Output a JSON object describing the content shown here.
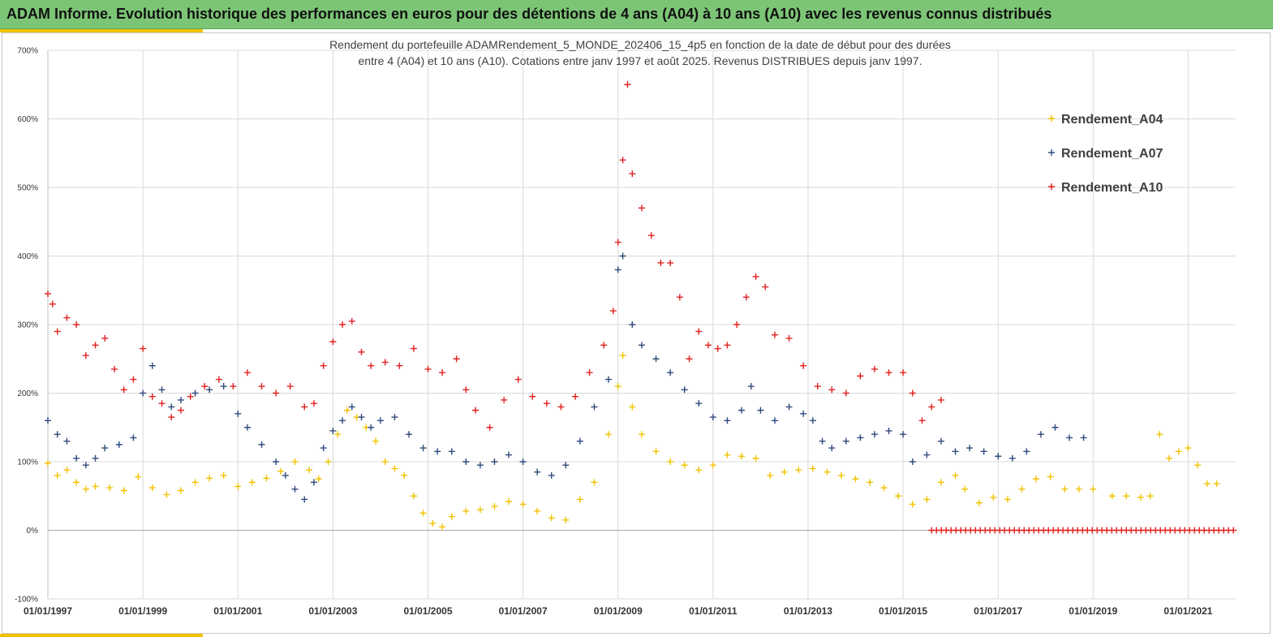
{
  "header": {
    "title": "ADAM Informe. Evolution historique des performances en euros pour des détentions de 4 ans (A04) à 10 ans (A10) avec les revenus connus distribués"
  },
  "chart_data": {
    "type": "scatter",
    "title": "",
    "subtitle_lines": [
      "Rendement du portefeuille ADAMRendement_5_MONDE_202406_15_4p5  en fonction de la date de début pour des durées",
      "entre 4 (A04) et 10 ans (A10). Cotations  entre janv 1997 et août 2025. Revenus DISTRIBUES depuis janv 1997."
    ],
    "xlabel": "",
    "ylabel": "",
    "x_range": [
      1997.0,
      2022.0
    ],
    "ylim": [
      -100,
      700
    ],
    "y_ticks": [
      -100,
      0,
      100,
      200,
      300,
      400,
      500,
      600,
      700
    ],
    "y_tick_labels": [
      "-100%",
      "0%",
      "100%",
      "200%",
      "300%",
      "400%",
      "500%",
      "600%",
      "700%"
    ],
    "x_ticks": [
      1997,
      1999,
      2001,
      2003,
      2005,
      2007,
      2009,
      2011,
      2013,
      2015,
      2017,
      2019,
      2021
    ],
    "x_tick_labels": [
      "01/01/1997",
      "01/01/1999",
      "01/01/2001",
      "01/01/2003",
      "01/01/2005",
      "01/01/2007",
      "01/01/2009",
      "01/01/2011",
      "01/01/2013",
      "01/01/2015",
      "01/01/2017",
      "01/01/2019",
      "01/01/2021"
    ],
    "grid": true,
    "marker": "+",
    "legend_position": "top-right",
    "x_unit": "year",
    "series": [
      {
        "name": "Rendement_A04",
        "color": "#f2c200",
        "points": [
          [
            1997.0,
            98
          ],
          [
            1997.2,
            80
          ],
          [
            1997.4,
            88
          ],
          [
            1997.6,
            70
          ],
          [
            1997.8,
            60
          ],
          [
            1998.0,
            64
          ],
          [
            1998.3,
            62
          ],
          [
            1998.6,
            58
          ],
          [
            1998.9,
            78
          ],
          [
            1999.2,
            62
          ],
          [
            1999.5,
            52
          ],
          [
            1999.8,
            58
          ],
          [
            2000.1,
            70
          ],
          [
            2000.4,
            76
          ],
          [
            2000.7,
            80
          ],
          [
            2001.0,
            64
          ],
          [
            2001.3,
            70
          ],
          [
            2001.6,
            76
          ],
          [
            2001.9,
            86
          ],
          [
            2002.2,
            100
          ],
          [
            2002.5,
            88
          ],
          [
            2002.7,
            75
          ],
          [
            2002.9,
            100
          ],
          [
            2003.1,
            140
          ],
          [
            2003.3,
            175
          ],
          [
            2003.5,
            165
          ],
          [
            2003.7,
            150
          ],
          [
            2003.9,
            130
          ],
          [
            2004.1,
            100
          ],
          [
            2004.3,
            90
          ],
          [
            2004.5,
            80
          ],
          [
            2004.7,
            50
          ],
          [
            2004.9,
            25
          ],
          [
            2005.1,
            10
          ],
          [
            2005.3,
            5
          ],
          [
            2005.5,
            20
          ],
          [
            2005.8,
            28
          ],
          [
            2006.1,
            30
          ],
          [
            2006.4,
            35
          ],
          [
            2006.7,
            42
          ],
          [
            2007.0,
            38
          ],
          [
            2007.3,
            28
          ],
          [
            2007.6,
            18
          ],
          [
            2007.9,
            15
          ],
          [
            2008.2,
            45
          ],
          [
            2008.5,
            70
          ],
          [
            2008.8,
            140
          ],
          [
            2009.0,
            210
          ],
          [
            2009.1,
            255
          ],
          [
            2009.3,
            180
          ],
          [
            2009.5,
            140
          ],
          [
            2009.8,
            115
          ],
          [
            2010.1,
            100
          ],
          [
            2010.4,
            95
          ],
          [
            2010.7,
            88
          ],
          [
            2011.0,
            95
          ],
          [
            2011.3,
            110
          ],
          [
            2011.6,
            108
          ],
          [
            2011.9,
            105
          ],
          [
            2012.2,
            80
          ],
          [
            2012.5,
            85
          ],
          [
            2012.8,
            88
          ],
          [
            2013.1,
            90
          ],
          [
            2013.4,
            85
          ],
          [
            2013.7,
            80
          ],
          [
            2014.0,
            75
          ],
          [
            2014.3,
            70
          ],
          [
            2014.6,
            62
          ],
          [
            2014.9,
            50
          ],
          [
            2015.2,
            38
          ],
          [
            2015.5,
            45
          ],
          [
            2015.8,
            70
          ],
          [
            2016.1,
            80
          ],
          [
            2016.3,
            60
          ],
          [
            2016.6,
            40
          ],
          [
            2016.9,
            48
          ],
          [
            2017.2,
            45
          ],
          [
            2017.5,
            60
          ],
          [
            2017.8,
            75
          ],
          [
            2018.1,
            78
          ],
          [
            2018.4,
            60
          ],
          [
            2018.7,
            60
          ],
          [
            2019.0,
            60
          ],
          [
            2019.4,
            50
          ],
          [
            2019.7,
            50
          ],
          [
            2020.0,
            48
          ],
          [
            2020.2,
            50
          ],
          [
            2020.4,
            140
          ],
          [
            2020.6,
            105
          ],
          [
            2020.8,
            115
          ],
          [
            2021.0,
            120
          ],
          [
            2021.2,
            95
          ],
          [
            2021.4,
            68
          ],
          [
            2021.6,
            68
          ]
        ]
      },
      {
        "name": "Rendement_A07",
        "color": "#2e4a7d",
        "points": [
          [
            1997.0,
            160
          ],
          [
            1997.2,
            140
          ],
          [
            1997.4,
            130
          ],
          [
            1997.6,
            105
          ],
          [
            1997.8,
            95
          ],
          [
            1998.0,
            105
          ],
          [
            1998.2,
            120
          ],
          [
            1998.5,
            125
          ],
          [
            1998.8,
            135
          ],
          [
            1999.0,
            200
          ],
          [
            1999.2,
            240
          ],
          [
            1999.4,
            205
          ],
          [
            1999.6,
            180
          ],
          [
            1999.8,
            190
          ],
          [
            2000.1,
            200
          ],
          [
            2000.4,
            205
          ],
          [
            2000.7,
            210
          ],
          [
            2001.0,
            170
          ],
          [
            2001.2,
            150
          ],
          [
            2001.5,
            125
          ],
          [
            2001.8,
            100
          ],
          [
            2002.0,
            80
          ],
          [
            2002.2,
            60
          ],
          [
            2002.4,
            45
          ],
          [
            2002.6,
            70
          ],
          [
            2002.8,
            120
          ],
          [
            2003.0,
            145
          ],
          [
            2003.2,
            160
          ],
          [
            2003.4,
            180
          ],
          [
            2003.6,
            165
          ],
          [
            2003.8,
            150
          ],
          [
            2004.0,
            160
          ],
          [
            2004.3,
            165
          ],
          [
            2004.6,
            140
          ],
          [
            2004.9,
            120
          ],
          [
            2005.2,
            115
          ],
          [
            2005.5,
            115
          ],
          [
            2005.8,
            100
          ],
          [
            2006.1,
            95
          ],
          [
            2006.4,
            100
          ],
          [
            2006.7,
            110
          ],
          [
            2007.0,
            100
          ],
          [
            2007.3,
            85
          ],
          [
            2007.6,
            80
          ],
          [
            2007.9,
            95
          ],
          [
            2008.2,
            130
          ],
          [
            2008.5,
            180
          ],
          [
            2008.8,
            220
          ],
          [
            2009.0,
            380
          ],
          [
            2009.1,
            400
          ],
          [
            2009.3,
            300
          ],
          [
            2009.5,
            270
          ],
          [
            2009.8,
            250
          ],
          [
            2010.1,
            230
          ],
          [
            2010.4,
            205
          ],
          [
            2010.7,
            185
          ],
          [
            2011.0,
            165
          ],
          [
            2011.3,
            160
          ],
          [
            2011.6,
            175
          ],
          [
            2011.8,
            210
          ],
          [
            2012.0,
            175
          ],
          [
            2012.3,
            160
          ],
          [
            2012.6,
            180
          ],
          [
            2012.9,
            170
          ],
          [
            2013.1,
            160
          ],
          [
            2013.3,
            130
          ],
          [
            2013.5,
            120
          ],
          [
            2013.8,
            130
          ],
          [
            2014.1,
            135
          ],
          [
            2014.4,
            140
          ],
          [
            2014.7,
            145
          ],
          [
            2015.0,
            140
          ],
          [
            2015.2,
            100
          ],
          [
            2015.5,
            110
          ],
          [
            2015.8,
            130
          ],
          [
            2016.1,
            115
          ],
          [
            2016.4,
            120
          ],
          [
            2016.7,
            115
          ],
          [
            2017.0,
            108
          ],
          [
            2017.3,
            105
          ],
          [
            2017.6,
            115
          ],
          [
            2017.9,
            140
          ],
          [
            2018.2,
            150
          ],
          [
            2018.5,
            135
          ],
          [
            2018.8,
            135
          ]
        ]
      },
      {
        "name": "Rendement_A10",
        "color": "#e02020",
        "points": [
          [
            1997.0,
            345
          ],
          [
            1997.1,
            330
          ],
          [
            1997.2,
            290
          ],
          [
            1997.4,
            310
          ],
          [
            1997.6,
            300
          ],
          [
            1997.8,
            255
          ],
          [
            1998.0,
            270
          ],
          [
            1998.2,
            280
          ],
          [
            1998.4,
            235
          ],
          [
            1998.6,
            205
          ],
          [
            1998.8,
            220
          ],
          [
            1999.0,
            265
          ],
          [
            1999.2,
            195
          ],
          [
            1999.4,
            185
          ],
          [
            1999.6,
            165
          ],
          [
            1999.8,
            175
          ],
          [
            2000.0,
            195
          ],
          [
            2000.3,
            210
          ],
          [
            2000.6,
            220
          ],
          [
            2000.9,
            210
          ],
          [
            2001.2,
            230
          ],
          [
            2001.5,
            210
          ],
          [
            2001.8,
            200
          ],
          [
            2002.1,
            210
          ],
          [
            2002.4,
            180
          ],
          [
            2002.6,
            185
          ],
          [
            2002.8,
            240
          ],
          [
            2003.0,
            275
          ],
          [
            2003.2,
            300
          ],
          [
            2003.4,
            305
          ],
          [
            2003.6,
            260
          ],
          [
            2003.8,
            240
          ],
          [
            2004.1,
            245
          ],
          [
            2004.4,
            240
          ],
          [
            2004.7,
            265
          ],
          [
            2005.0,
            235
          ],
          [
            2005.3,
            230
          ],
          [
            2005.6,
            250
          ],
          [
            2005.8,
            205
          ],
          [
            2006.0,
            175
          ],
          [
            2006.3,
            150
          ],
          [
            2006.6,
            190
          ],
          [
            2006.9,
            220
          ],
          [
            2007.2,
            195
          ],
          [
            2007.5,
            185
          ],
          [
            2007.8,
            180
          ],
          [
            2008.1,
            195
          ],
          [
            2008.4,
            230
          ],
          [
            2008.7,
            270
          ],
          [
            2008.9,
            320
          ],
          [
            2009.0,
            420
          ],
          [
            2009.1,
            540
          ],
          [
            2009.2,
            650
          ],
          [
            2009.3,
            520
          ],
          [
            2009.5,
            470
          ],
          [
            2009.7,
            430
          ],
          [
            2009.9,
            390
          ],
          [
            2010.1,
            390
          ],
          [
            2010.3,
            340
          ],
          [
            2010.5,
            250
          ],
          [
            2010.7,
            290
          ],
          [
            2010.9,
            270
          ],
          [
            2011.1,
            265
          ],
          [
            2011.3,
            270
          ],
          [
            2011.5,
            300
          ],
          [
            2011.7,
            340
          ],
          [
            2011.9,
            370
          ],
          [
            2012.1,
            355
          ],
          [
            2012.3,
            285
          ],
          [
            2012.6,
            280
          ],
          [
            2012.9,
            240
          ],
          [
            2013.2,
            210
          ],
          [
            2013.5,
            205
          ],
          [
            2013.8,
            200
          ],
          [
            2014.1,
            225
          ],
          [
            2014.4,
            235
          ],
          [
            2014.7,
            230
          ],
          [
            2015.0,
            230
          ],
          [
            2015.2,
            200
          ],
          [
            2015.4,
            160
          ],
          [
            2015.6,
            180
          ],
          [
            2015.8,
            190
          ]
        ]
      }
    ]
  }
}
